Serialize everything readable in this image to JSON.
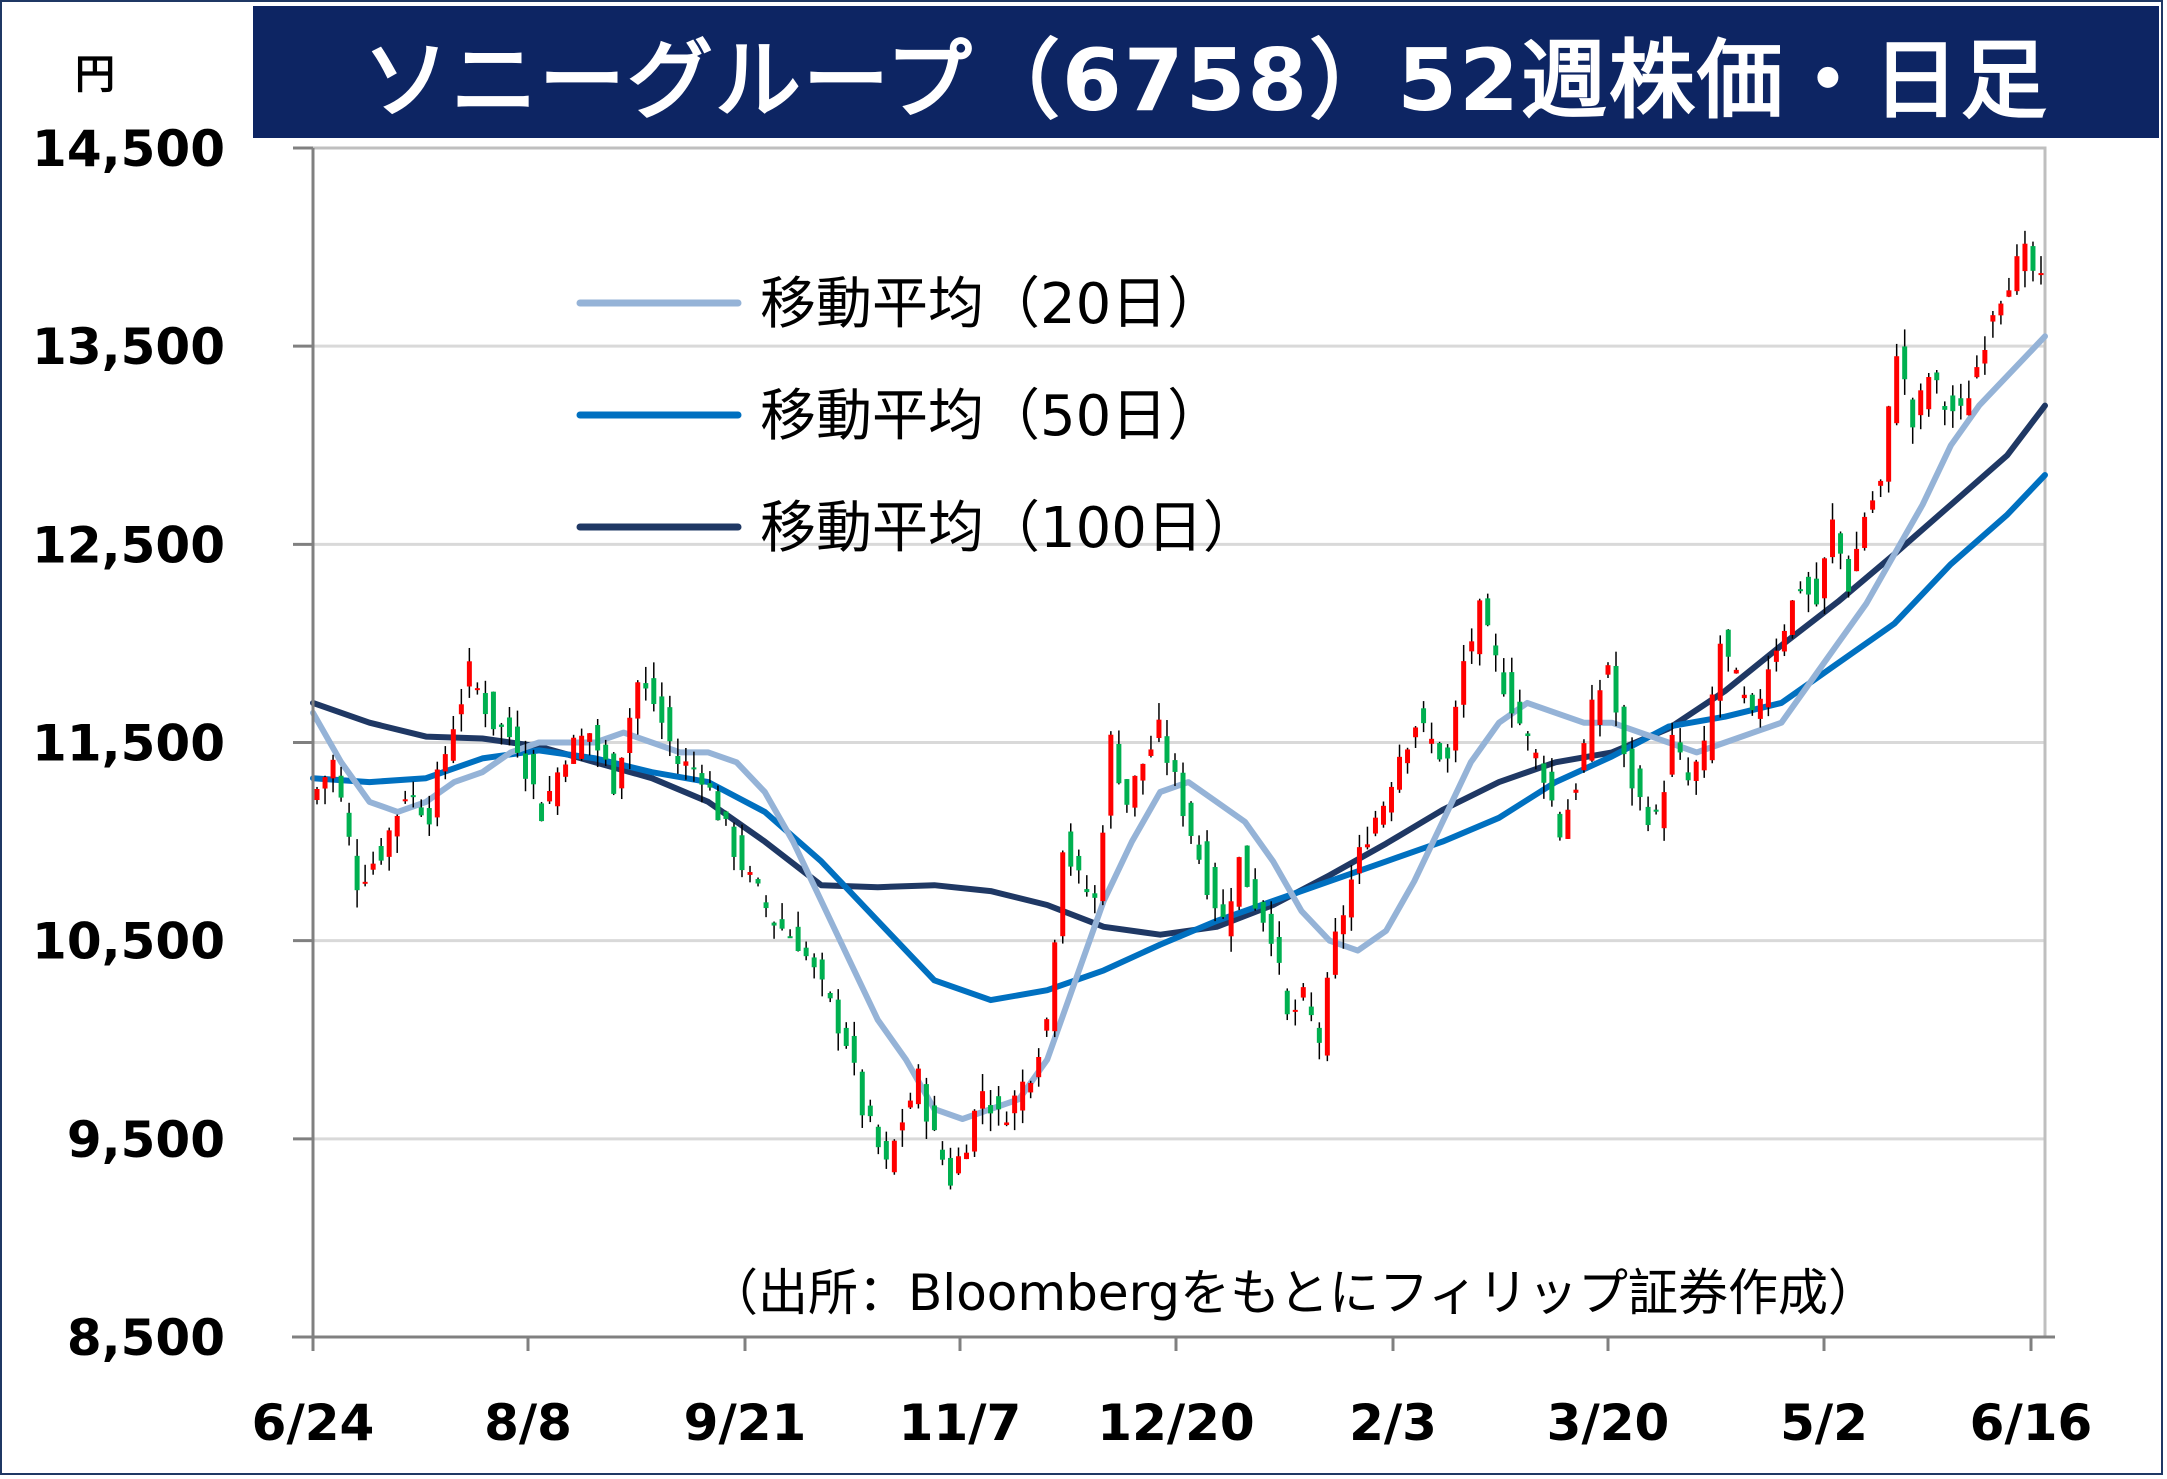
{
  "title": "ソニーグループ（6758）52週株価・日足",
  "chart_data": {
    "type": "candlestick",
    "y_unit": "円",
    "ylim": [
      8500,
      14500
    ],
    "y_ticks": [
      8500,
      9500,
      10500,
      11500,
      12500,
      13500,
      14500
    ],
    "y_tick_labels": [
      "8,500",
      "9,500",
      "10,500",
      "11,500",
      "12,500",
      "13,500",
      "14,500"
    ],
    "x_tick_labels": [
      "6/24",
      "8/8",
      "9/21",
      "11/7",
      "12/20",
      "2/3",
      "3/20",
      "5/2",
      "6/16"
    ],
    "grid": true,
    "legend": [
      {
        "label": "移動平均（20日）",
        "color": "#95b3d7"
      },
      {
        "label": "移動平均（50日）",
        "color": "#0070c0"
      },
      {
        "label": "移動平均（100日）",
        "color": "#1f3864"
      }
    ],
    "source_note": "（出所：Bloombergをもとにフィリップ証券作成）",
    "colors": {
      "up": "#ff0000",
      "down": "#00b050",
      "grid": "#d9d9d9"
    },
    "anchor_closes": [
      [
        0,
        11200
      ],
      [
        3,
        11400
      ],
      [
        6,
        10800
      ],
      [
        9,
        10950
      ],
      [
        12,
        11250
      ],
      [
        15,
        11150
      ],
      [
        18,
        11600
      ],
      [
        20,
        11850
      ],
      [
        23,
        11600
      ],
      [
        26,
        11500
      ],
      [
        29,
        11150
      ],
      [
        32,
        11450
      ],
      [
        35,
        11550
      ],
      [
        38,
        11300
      ],
      [
        41,
        11800
      ],
      [
        43,
        11700
      ],
      [
        46,
        11400
      ],
      [
        49,
        11350
      ],
      [
        52,
        11050
      ],
      [
        55,
        10800
      ],
      [
        58,
        10600
      ],
      [
        61,
        10500
      ],
      [
        64,
        10250
      ],
      [
        67,
        10000
      ],
      [
        69,
        9650
      ],
      [
        72,
        9350
      ],
      [
        74,
        9600
      ],
      [
        76,
        9800
      ],
      [
        78,
        9500
      ],
      [
        80,
        9300
      ],
      [
        82,
        9500
      ],
      [
        84,
        9750
      ],
      [
        86,
        9600
      ],
      [
        88,
        9700
      ],
      [
        90,
        9850
      ],
      [
        92,
        10100
      ],
      [
        94,
        11000
      ],
      [
        96,
        10800
      ],
      [
        98,
        10700
      ],
      [
        100,
        11500
      ],
      [
        102,
        11200
      ],
      [
        104,
        11400
      ],
      [
        106,
        11550
      ],
      [
        108,
        11300
      ],
      [
        110,
        11050
      ],
      [
        112,
        10800
      ],
      [
        114,
        10600
      ],
      [
        116,
        10900
      ],
      [
        118,
        10700
      ],
      [
        120,
        10550
      ],
      [
        122,
        10100
      ],
      [
        124,
        10200
      ],
      [
        126,
        10000
      ],
      [
        128,
        10500
      ],
      [
        130,
        10800
      ],
      [
        132,
        11050
      ],
      [
        134,
        11200
      ],
      [
        136,
        11450
      ],
      [
        138,
        11600
      ],
      [
        140,
        11500
      ],
      [
        142,
        11400
      ],
      [
        144,
        11900
      ],
      [
        146,
        12150
      ],
      [
        148,
        11900
      ],
      [
        150,
        11700
      ],
      [
        152,
        11500
      ],
      [
        154,
        11350
      ],
      [
        156,
        11050
      ],
      [
        158,
        11300
      ],
      [
        160,
        11650
      ],
      [
        162,
        11900
      ],
      [
        164,
        11400
      ],
      [
        166,
        11200
      ],
      [
        168,
        11100
      ],
      [
        170,
        11500
      ],
      [
        172,
        11300
      ],
      [
        174,
        11450
      ],
      [
        176,
        12000
      ],
      [
        178,
        11800
      ],
      [
        180,
        11600
      ],
      [
        182,
        11900
      ],
      [
        184,
        12100
      ],
      [
        186,
        12300
      ],
      [
        188,
        12200
      ],
      [
        190,
        12600
      ],
      [
        192,
        12300
      ],
      [
        194,
        12650
      ],
      [
        196,
        12800
      ],
      [
        198,
        13500
      ],
      [
        200,
        13100
      ],
      [
        202,
        13350
      ],
      [
        204,
        13200
      ],
      [
        206,
        13150
      ],
      [
        208,
        13400
      ],
      [
        210,
        13700
      ],
      [
        212,
        13850
      ],
      [
        214,
        13950
      ],
      [
        216,
        13800
      ]
    ],
    "ma20_points": [
      [
        0,
        11650
      ],
      [
        3,
        11400
      ],
      [
        6,
        11200
      ],
      [
        9,
        11150
      ],
      [
        12,
        11200
      ],
      [
        15,
        11300
      ],
      [
        18,
        11350
      ],
      [
        21,
        11450
      ],
      [
        24,
        11500
      ],
      [
        27,
        11500
      ],
      [
        30,
        11500
      ],
      [
        33,
        11550
      ],
      [
        36,
        11500
      ],
      [
        39,
        11450
      ],
      [
        42,
        11450
      ],
      [
        45,
        11400
      ],
      [
        48,
        11250
      ],
      [
        51,
        11000
      ],
      [
        54,
        10700
      ],
      [
        57,
        10400
      ],
      [
        60,
        10100
      ],
      [
        63,
        9900
      ],
      [
        66,
        9650
      ],
      [
        69,
        9600
      ],
      [
        72,
        9650
      ],
      [
        75,
        9700
      ],
      [
        78,
        9900
      ],
      [
        81,
        10300
      ],
      [
        84,
        10700
      ],
      [
        87,
        11000
      ],
      [
        90,
        11250
      ],
      [
        93,
        11300
      ],
      [
        96,
        11200
      ],
      [
        99,
        11100
      ],
      [
        102,
        10900
      ],
      [
        105,
        10650
      ],
      [
        108,
        10500
      ],
      [
        111,
        10450
      ],
      [
        114,
        10550
      ],
      [
        117,
        10800
      ],
      [
        120,
        11100
      ],
      [
        123,
        11400
      ],
      [
        126,
        11600
      ],
      [
        129,
        11700
      ],
      [
        132,
        11650
      ],
      [
        135,
        11600
      ],
      [
        138,
        11600
      ],
      [
        141,
        11550
      ],
      [
        144,
        11500
      ],
      [
        147,
        11450
      ],
      [
        150,
        11500
      ],
      [
        153,
        11550
      ],
      [
        156,
        11600
      ],
      [
        159,
        11800
      ],
      [
        162,
        12000
      ],
      [
        165,
        12200
      ],
      [
        168,
        12450
      ],
      [
        171,
        12700
      ],
      [
        174,
        13000
      ],
      [
        177,
        13200
      ],
      [
        180,
        13350
      ],
      [
        183,
        13500
      ],
      [
        184,
        13550
      ]
    ],
    "ma50_points": [
      [
        0,
        11320
      ],
      [
        6,
        11300
      ],
      [
        12,
        11320
      ],
      [
        18,
        11420
      ],
      [
        24,
        11460
      ],
      [
        30,
        11420
      ],
      [
        36,
        11350
      ],
      [
        42,
        11300
      ],
      [
        48,
        11150
      ],
      [
        54,
        10900
      ],
      [
        60,
        10600
      ],
      [
        66,
        10300
      ],
      [
        72,
        10200
      ],
      [
        78,
        10250
      ],
      [
        84,
        10350
      ],
      [
        90,
        10480
      ],
      [
        96,
        10600
      ],
      [
        102,
        10700
      ],
      [
        108,
        10800
      ],
      [
        114,
        10900
      ],
      [
        120,
        11000
      ],
      [
        126,
        11120
      ],
      [
        132,
        11300
      ],
      [
        138,
        11430
      ],
      [
        144,
        11580
      ],
      [
        150,
        11630
      ],
      [
        156,
        11700
      ],
      [
        162,
        11900
      ],
      [
        168,
        12100
      ],
      [
        174,
        12400
      ],
      [
        180,
        12650
      ],
      [
        184,
        12850
      ]
    ],
    "ma100_points": [
      [
        0,
        11700
      ],
      [
        6,
        11600
      ],
      [
        12,
        11530
      ],
      [
        18,
        11520
      ],
      [
        24,
        11480
      ],
      [
        30,
        11400
      ],
      [
        36,
        11320
      ],
      [
        42,
        11200
      ],
      [
        48,
        11000
      ],
      [
        54,
        10780
      ],
      [
        60,
        10770
      ],
      [
        66,
        10780
      ],
      [
        72,
        10750
      ],
      [
        78,
        10680
      ],
      [
        84,
        10570
      ],
      [
        90,
        10530
      ],
      [
        96,
        10570
      ],
      [
        102,
        10680
      ],
      [
        108,
        10830
      ],
      [
        114,
        10990
      ],
      [
        120,
        11160
      ],
      [
        126,
        11300
      ],
      [
        132,
        11400
      ],
      [
        138,
        11450
      ],
      [
        144,
        11570
      ],
      [
        150,
        11760
      ],
      [
        156,
        11990
      ],
      [
        162,
        12210
      ],
      [
        168,
        12450
      ],
      [
        174,
        12700
      ],
      [
        180,
        12950
      ],
      [
        184,
        13200
      ]
    ]
  }
}
